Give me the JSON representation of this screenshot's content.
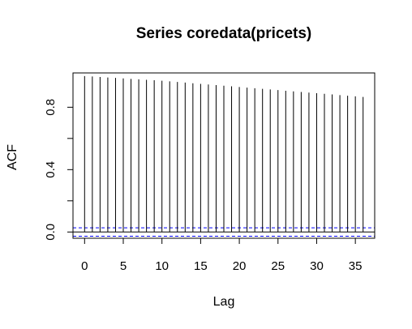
{
  "chart_data": {
    "type": "bar",
    "title": "Series  coredata(pricets)",
    "xlabel": "Lag",
    "ylabel": "ACF",
    "xlim": [
      -1.5,
      37.5
    ],
    "ylim": [
      -0.04,
      1.02
    ],
    "xticks": [
      0,
      5,
      10,
      15,
      20,
      25,
      30,
      35
    ],
    "yticks": [
      0.0,
      0.4,
      0.8
    ],
    "ytick_labels": [
      "0.0",
      "0.4",
      "0.8"
    ],
    "yminor_ticks": [
      0.2,
      0.6
    ],
    "lags": [
      0,
      1,
      2,
      3,
      4,
      5,
      6,
      7,
      8,
      9,
      10,
      11,
      12,
      13,
      14,
      15,
      16,
      17,
      18,
      19,
      20,
      21,
      22,
      23,
      24,
      25,
      26,
      27,
      28,
      29,
      30,
      31,
      32,
      33,
      34,
      35,
      36
    ],
    "values": [
      1.0,
      0.997,
      0.994,
      0.991,
      0.988,
      0.985,
      0.982,
      0.979,
      0.976,
      0.973,
      0.97,
      0.966,
      0.962,
      0.958,
      0.954,
      0.95,
      0.946,
      0.942,
      0.938,
      0.934,
      0.93,
      0.926,
      0.922,
      0.918,
      0.914,
      0.91,
      0.906,
      0.902,
      0.898,
      0.894,
      0.89,
      0.886,
      0.882,
      0.878,
      0.874,
      0.87,
      0.866
    ],
    "confidence_bounds": [
      0.027,
      -0.027
    ],
    "zero_line": 0,
    "grid": false,
    "colors": {
      "bars": "#000000",
      "confidence": "#0000ff"
    }
  }
}
